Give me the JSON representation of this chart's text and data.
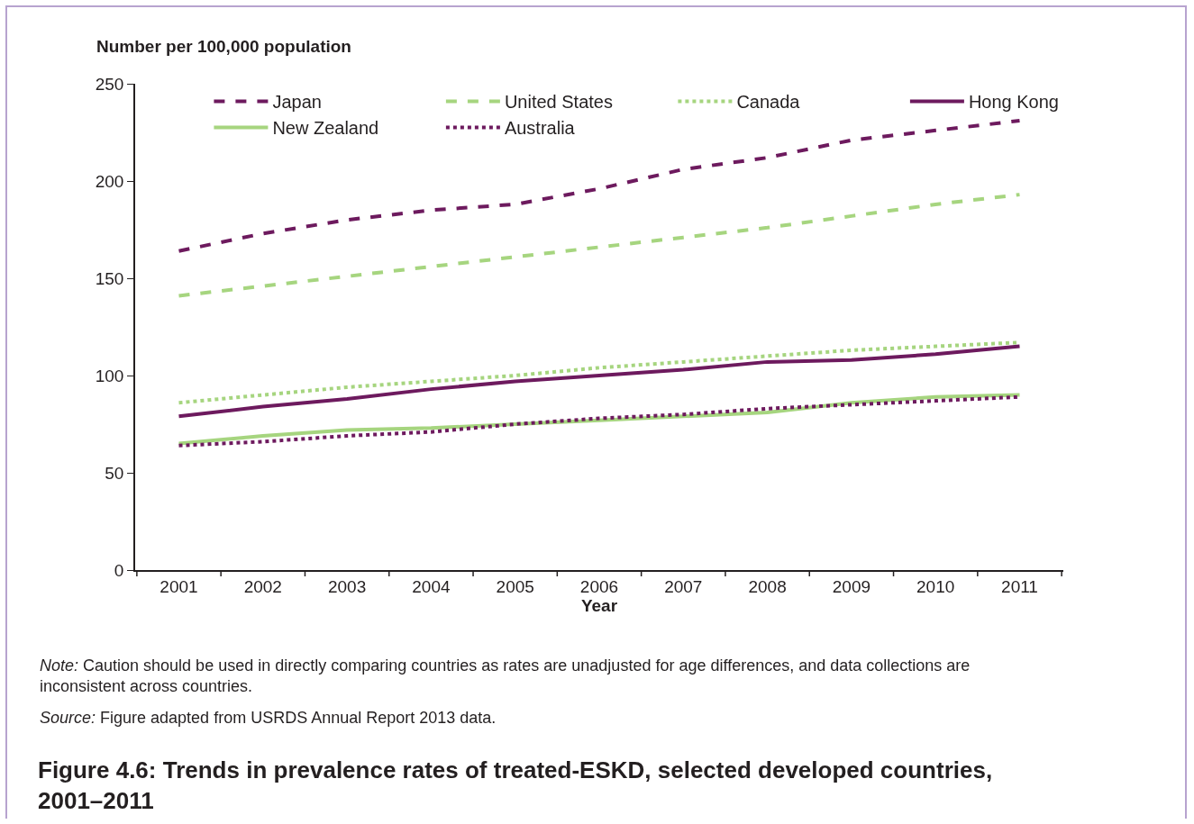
{
  "chart_data": {
    "type": "line",
    "title": "Figure 4.6: Trends in prevalence rates of treated-ESKD, selected developed countries, 2001–2011",
    "ylabel": "Number per 100,000 population",
    "xlabel": "Year",
    "categories": [
      "2001",
      "2002",
      "2003",
      "2004",
      "2005",
      "2006",
      "2007",
      "2008",
      "2009",
      "2010",
      "2011"
    ],
    "series": [
      {
        "name": "Japan",
        "color": "#6d1a5e",
        "line_style": "dashed",
        "values": [
          164,
          173,
          180,
          185,
          188,
          196,
          206,
          212,
          221,
          226,
          231
        ]
      },
      {
        "name": "United States",
        "color": "#a6d57f",
        "line_style": "dashed",
        "values": [
          141,
          146,
          151,
          156,
          161,
          166,
          171,
          176,
          182,
          188,
          193
        ]
      },
      {
        "name": "Canada",
        "color": "#a6d57f",
        "line_style": "dotted",
        "values": [
          86,
          90,
          94,
          97,
          100,
          104,
          107,
          110,
          113,
          115,
          117
        ]
      },
      {
        "name": "Hong Kong",
        "color": "#6d1a5e",
        "line_style": "solid",
        "values": [
          79,
          84,
          88,
          93,
          97,
          100,
          103,
          107,
          108,
          111,
          115
        ]
      },
      {
        "name": "New Zealand",
        "color": "#a6d57f",
        "line_style": "solid",
        "values": [
          65,
          69,
          72,
          73,
          75,
          77,
          79,
          81,
          86,
          89,
          90
        ]
      },
      {
        "name": "Australia",
        "color": "#6d1a5e",
        "line_style": "dotted",
        "values": [
          64,
          66,
          69,
          71,
          75,
          78,
          80,
          83,
          85,
          87,
          89
        ]
      }
    ],
    "ylim": [
      0,
      250
    ],
    "yticks": [
      0,
      50,
      100,
      150,
      200,
      250
    ],
    "grid": false,
    "legend": "top left",
    "marker": "none",
    "annotations": [
      "Note: Caution should be used in directly comparing countries as rates are unadjusted for age differences, and data collections are inconsistent across countries.",
      "Source: Figure adapted from USRDS Annual Report 2013 data."
    ]
  }
}
